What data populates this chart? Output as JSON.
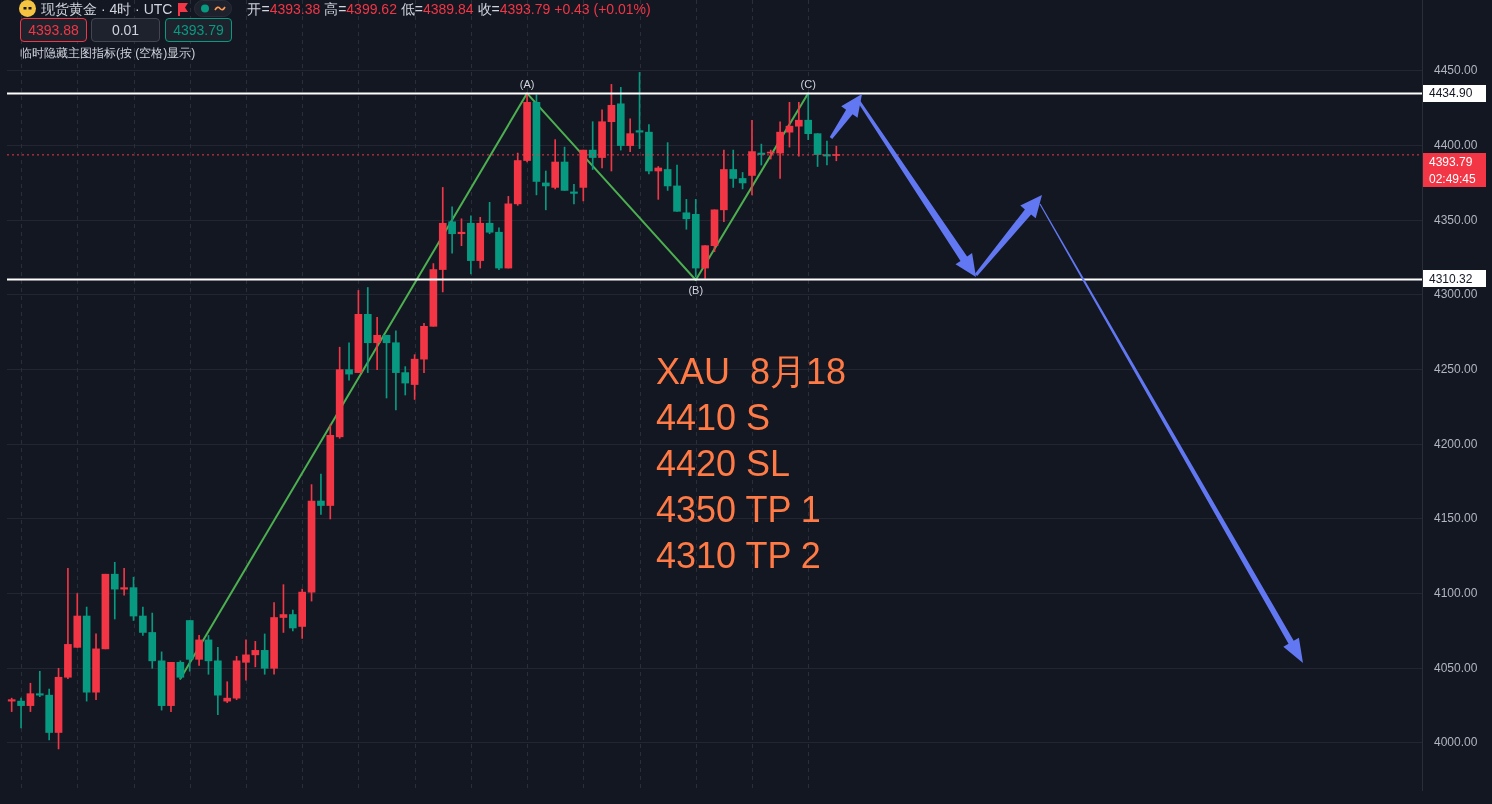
{
  "chart_data": {
    "type": "candlestick",
    "title": "现货黄金 · 4时 · UTC",
    "subtitle": "开=4393.38 高=4399.62 低=4389.84 收=4393.79 +0.43 (+0.01%)",
    "categories": [
      null,
      null,
      null,
      null,
      null,
      null,
      null,
      null,
      null,
      null,
      null,
      null,
      null,
      null,
      null,
      null,
      null,
      null,
      null,
      null,
      null,
      null,
      null,
      null,
      null,
      null,
      null,
      null,
      null,
      null,
      null,
      null,
      null,
      null,
      null,
      null,
      null,
      null,
      null,
      null,
      null,
      null,
      null,
      null,
      null,
      null,
      null,
      null,
      null,
      null,
      null,
      null,
      null,
      null,
      null,
      null,
      null,
      null,
      null,
      null,
      null,
      null,
      null,
      null,
      null,
      null,
      null,
      null,
      null,
      null,
      null,
      null,
      null,
      null,
      null,
      null,
      null,
      null,
      null,
      null,
      null,
      null,
      null,
      null,
      null,
      null,
      null,
      null,
      null,
      null,
      null,
      null,
      null,
      null,
      null,
      null,
      null,
      null,
      null,
      null,
      null,
      null,
      null,
      null,
      null,
      null,
      null,
      null,
      null,
      null,
      null,
      null,
      null,
      null,
      null,
      null,
      null,
      null,
      null,
      null,
      null,
      null,
      null,
      null,
      null,
      null,
      null,
      null,
      null,
      null,
      null,
      null,
      null,
      null,
      null,
      null,
      null,
      null,
      null,
      null,
      null,
      null,
      null,
      null,
      null,
      null,
      null,
      null,
      null,
      null,
      null
    ],
    "ohlc": [
      [
        4028,
        4030,
        4021,
        4029
      ],
      [
        4028,
        4030,
        4010,
        4025
      ],
      [
        4025,
        4040,
        4021,
        4033
      ],
      [
        4033,
        4048,
        4031,
        4032
      ],
      [
        4032,
        4036,
        4002,
        4007
      ],
      [
        4007,
        4050,
        3996,
        4044
      ],
      [
        4044,
        4117,
        4043,
        4066
      ],
      [
        4064,
        4100,
        4064,
        4085
      ],
      [
        4085,
        4091,
        4028,
        4034
      ],
      [
        4034,
        4073,
        4029,
        4063
      ],
      [
        4063,
        4113,
        4063,
        4113
      ],
      [
        4113,
        4121,
        4083,
        4103
      ],
      [
        4103,
        4117,
        4099,
        4104
      ],
      [
        4104,
        4111,
        4082,
        4085
      ],
      [
        4085,
        4091,
        4072,
        4074
      ],
      [
        4074,
        4087,
        4050,
        4055
      ],
      [
        4055,
        4061,
        4022,
        4025
      ],
      [
        4025,
        4054,
        4021,
        4054
      ],
      [
        4054,
        4055,
        4043,
        4044
      ],
      [
        4082,
        4082,
        4048,
        4056
      ],
      [
        4056,
        4072,
        4052,
        4069
      ],
      [
        4069,
        4072,
        4046,
        4055
      ],
      [
        4055,
        4064,
        4019,
        4032
      ],
      [
        4028,
        4041,
        4027,
        4030
      ],
      [
        4030,
        4058,
        4029,
        4055
      ],
      [
        4054,
        4069,
        4042,
        4059
      ],
      [
        4059,
        4068,
        4051,
        4062
      ],
      [
        4062,
        4073,
        4046,
        4050
      ],
      [
        4050,
        4094,
        4046,
        4084
      ],
      [
        4084,
        4106,
        4074,
        4086
      ],
      [
        4086,
        4089,
        4075,
        4077
      ],
      [
        4078,
        4103,
        4070,
        4101
      ],
      [
        4101,
        4173,
        4095,
        4162
      ],
      [
        4162,
        4180,
        4153,
        4159
      ],
      [
        4159,
        4213,
        4150,
        4206
      ],
      [
        4205,
        4265,
        4204,
        4250
      ],
      [
        4250,
        4268,
        4243,
        4247
      ],
      [
        4248,
        4303,
        4248,
        4287
      ],
      [
        4287,
        4305,
        4248,
        4268
      ],
      [
        4268,
        4285,
        4250,
        4273
      ],
      [
        4273,
        4273,
        4231,
        4268
      ],
      [
        4268,
        4276,
        4223,
        4248
      ],
      [
        4248,
        4252,
        4233,
        4241
      ],
      [
        4240,
        4260,
        4230,
        4257
      ],
      [
        4257,
        4281,
        4248,
        4279
      ],
      [
        4279,
        4321,
        4279,
        4317
      ],
      [
        4317,
        4372,
        4302,
        4348
      ],
      [
        4349,
        4359,
        4328,
        4341
      ],
      [
        4341,
        4351,
        4333,
        4342
      ],
      [
        4348,
        4353,
        4314,
        4323
      ],
      [
        4323,
        4352,
        4318,
        4348
      ],
      [
        4348,
        4362,
        4341,
        4342
      ],
      [
        4342,
        4345,
        4317,
        4318
      ],
      [
        4318,
        4366,
        4318,
        4361
      ],
      [
        4361,
        4395,
        4360,
        4390
      ],
      [
        4390,
        4435,
        4389,
        4429
      ],
      [
        4429,
        4434,
        4367,
        4376
      ],
      [
        4375,
        4383,
        4357,
        4373
      ],
      [
        4372,
        4404,
        4371,
        4389
      ],
      [
        4389,
        4399,
        4370,
        4370
      ],
      [
        4369,
        4374,
        4361,
        4368
      ],
      [
        4372,
        4397,
        4363,
        4397
      ],
      [
        4397,
        4416,
        4384,
        4392
      ],
      [
        4392,
        4424,
        4385,
        4416
      ],
      [
        4416,
        4441,
        4383,
        4427
      ],
      [
        4428,
        4439,
        4397,
        4400
      ],
      [
        4400,
        4418,
        4396,
        4408
      ],
      [
        4410,
        4449,
        4398,
        4409
      ],
      [
        4409,
        4414,
        4381,
        4383
      ],
      [
        4383,
        4386,
        4364,
        4385
      ],
      [
        4384,
        4402,
        4370,
        4373
      ],
      [
        4373,
        4387,
        4356,
        4356
      ],
      [
        4355,
        4364,
        4344,
        4351
      ],
      [
        4354,
        4364,
        4312,
        4318
      ],
      [
        4318,
        4333,
        4311,
        4333
      ],
      [
        4333,
        4357,
        4329,
        4357
      ],
      [
        4357,
        4397,
        4349,
        4384
      ],
      [
        4384,
        4397,
        4372,
        4378
      ],
      [
        4378,
        4382,
        4371,
        4375
      ],
      [
        4380,
        4417,
        4367,
        4396
      ],
      [
        4395,
        4401,
        4387,
        4394
      ],
      [
        4395,
        4397,
        4391,
        4395
      ],
      [
        4395,
        4416,
        4378,
        4409
      ],
      [
        4409,
        4429,
        4399,
        4413
      ],
      [
        4413,
        4429,
        4393,
        4417
      ],
      [
        4417,
        4435,
        4404,
        4408
      ],
      [
        4408,
        4408,
        4386,
        4394
      ],
      [
        4394,
        4403,
        4387,
        4393
      ],
      [
        4393.38,
        4399.62,
        4389.84,
        4393.79
      ],
      null,
      null,
      null,
      null,
      null,
      null,
      null,
      null,
      null,
      null,
      null,
      null,
      null,
      null,
      null,
      null,
      null,
      null,
      null,
      null,
      null,
      null,
      null,
      null,
      null,
      null,
      null,
      null,
      null,
      null,
      null,
      null,
      null,
      null,
      null,
      null,
      null,
      null,
      null,
      null,
      null,
      null,
      null,
      null,
      null,
      null,
      null,
      null,
      null,
      null,
      null,
      null,
      null,
      null,
      null,
      null,
      null,
      null,
      null,
      null,
      null,
      null
    ],
    "colors": [
      "#f23645",
      "#089981",
      "#f23645",
      "#089981",
      "#089981",
      "#f23645",
      "#f23645",
      "#f23645",
      "#089981",
      "#f23645",
      "#f23645",
      "#089981",
      "#f23645",
      "#089981",
      "#089981",
      "#089981",
      "#089981",
      "#f23645",
      "#089981",
      "#089981",
      "#f23645",
      "#089981",
      "#089981",
      "#f23645",
      "#f23645",
      "#f23645",
      "#f23645",
      "#089981",
      "#f23645",
      "#f23645",
      "#089981",
      "#f23645",
      "#f23645",
      "#089981",
      "#f23645",
      "#f23645",
      "#089981",
      "#f23645",
      "#089981",
      "#f23645",
      "#089981",
      "#089981",
      "#089981",
      "#f23645",
      "#f23645",
      "#f23645",
      "#f23645",
      "#089981",
      "#f23645",
      "#089981",
      "#f23645",
      "#089981",
      "#089981",
      "#f23645",
      "#f23645",
      "#f23645",
      "#089981",
      "#089981",
      "#f23645",
      "#089981",
      "#089981",
      "#f23645",
      "#089981",
      "#f23645",
      "#f23645",
      "#089981",
      "#f23645",
      "#089981",
      "#089981",
      "#f23645",
      "#089981",
      "#089981",
      "#089981",
      "#089981",
      "#f23645",
      "#f23645",
      "#f23645",
      "#089981",
      "#089981",
      "#f23645",
      "#089981",
      "#f23645",
      "#f23645",
      "#f23645",
      "#f23645",
      "#089981",
      "#089981",
      "#089981",
      "#f23645",
      null,
      null,
      null,
      null,
      null,
      null,
      null,
      null,
      null,
      null,
      null,
      null,
      null,
      null,
      null,
      null,
      null,
      null,
      null,
      null,
      null,
      null,
      null,
      null,
      null,
      null,
      null,
      null,
      null,
      null,
      null,
      null,
      null,
      null,
      null,
      null,
      null,
      null,
      null,
      null,
      null,
      null,
      null,
      null,
      null,
      null,
      null,
      null,
      null,
      null,
      null,
      null,
      null,
      null,
      null,
      null,
      null,
      null,
      null,
      null,
      null,
      null
    ],
    "series": [
      {
        "type": "line",
        "color": "#4caf50",
        "values": [
          null,
          null,
          null,
          null,
          null,
          null,
          null,
          null,
          null,
          null,
          null,
          null,
          null,
          null,
          null,
          null,
          null,
          null,
          4043,
          null,
          null,
          null,
          null,
          null,
          null,
          null,
          null,
          null,
          null,
          null,
          null,
          null,
          null,
          null,
          null,
          null,
          null,
          null,
          null,
          null,
          null,
          null,
          null,
          null,
          null,
          null,
          null,
          null,
          null,
          null,
          null,
          null,
          null,
          null,
          null,
          4435,
          null,
          null,
          null,
          null,
          null,
          null,
          null,
          null,
          null,
          null,
          null,
          null,
          null,
          null,
          null,
          null,
          null,
          4310,
          null,
          null,
          null,
          null,
          null,
          null,
          null,
          null,
          null,
          null,
          null,
          4435,
          null,
          null,
          null,
          null,
          null,
          null,
          null,
          null,
          null,
          null,
          null,
          null,
          null,
          null,
          null,
          null,
          null,
          null,
          null,
          null,
          null,
          null,
          null,
          null,
          null,
          null,
          null,
          null,
          null,
          null,
          null,
          null,
          null,
          null,
          null,
          null,
          null,
          null,
          null,
          null,
          null,
          null,
          null,
          null,
          null,
          null,
          null,
          null,
          null,
          null,
          null,
          null,
          null,
          null,
          null,
          null,
          null,
          null,
          null,
          null,
          null,
          null,
          null,
          null,
          null
        ],
        "value_labels": [
          null,
          null,
          null,
          null,
          null,
          null,
          null,
          null,
          null,
          null,
          null,
          null,
          null,
          null,
          null,
          null,
          null,
          null,
          null,
          null,
          null,
          null,
          null,
          null,
          null,
          null,
          null,
          null,
          null,
          null,
          null,
          null,
          null,
          null,
          null,
          null,
          null,
          null,
          null,
          null,
          null,
          null,
          null,
          null,
          null,
          null,
          null,
          null,
          null,
          null,
          null,
          null,
          null,
          null,
          null,
          "(A)",
          null,
          null,
          null,
          null,
          null,
          null,
          null,
          null,
          null,
          null,
          null,
          null,
          null,
          null,
          null,
          null,
          null,
          "(B)",
          null,
          null,
          null,
          null,
          null,
          null,
          null,
          null,
          null,
          null,
          null,
          "(C)",
          null,
          null,
          null,
          null,
          null,
          null,
          null,
          null,
          null,
          null,
          null,
          null,
          null,
          null,
          null,
          null,
          null,
          null,
          null,
          null,
          null,
          null,
          null,
          null,
          null,
          null,
          null,
          null,
          null,
          null,
          null,
          null,
          null,
          null,
          null,
          null,
          null,
          null,
          null,
          null,
          null,
          null,
          null,
          null,
          null,
          null,
          null,
          null,
          null,
          null,
          null,
          null,
          null,
          null,
          null,
          null,
          null,
          null,
          null,
          null,
          null,
          null,
          null,
          null,
          null
        ]
      }
    ],
    "ylim": [
      3968.5,
      4497.5
    ],
    "yticks": [
      {
        "value": 4000,
        "label": "4000.00"
      },
      {
        "value": 4050,
        "label": "4050.00"
      },
      {
        "value": 4100,
        "label": "4100.00"
      },
      {
        "value": 4150,
        "label": "4150.00"
      },
      {
        "value": 4200,
        "label": "4200.00"
      },
      {
        "value": 4250,
        "label": "4250.00"
      },
      {
        "value": 4300,
        "label": "4300.00"
      },
      {
        "value": 4350,
        "label": "4350.00"
      },
      {
        "value": 4400,
        "label": "4400.00"
      },
      {
        "value": 4450,
        "label": "4450.00"
      }
    ],
    "ref_lines": [
      {
        "axis": "y",
        "value": 4434.9,
        "label": "4434.90",
        "color": "#ffffff"
      },
      {
        "axis": "y",
        "value": 4310.32,
        "label": "4310.32",
        "color": "#ffffff"
      },
      {
        "axis": "y",
        "value": 4393.79,
        "label": "4393.79",
        "color": "#f23645",
        "line_style": "dotted"
      }
    ],
    "annotations": [
      "4393.88",
      "0.01",
      "4393.79",
      "临时隐藏主图指标(按 (空格)显示)",
      "02:49:45",
      "XAU  8月18",
      "4410 S",
      "4420 SL",
      "4350 TP 1",
      "4310 TP 2"
    ],
    "grid": true,
    "marker": "none",
    "tick_labels": "y"
  }
}
